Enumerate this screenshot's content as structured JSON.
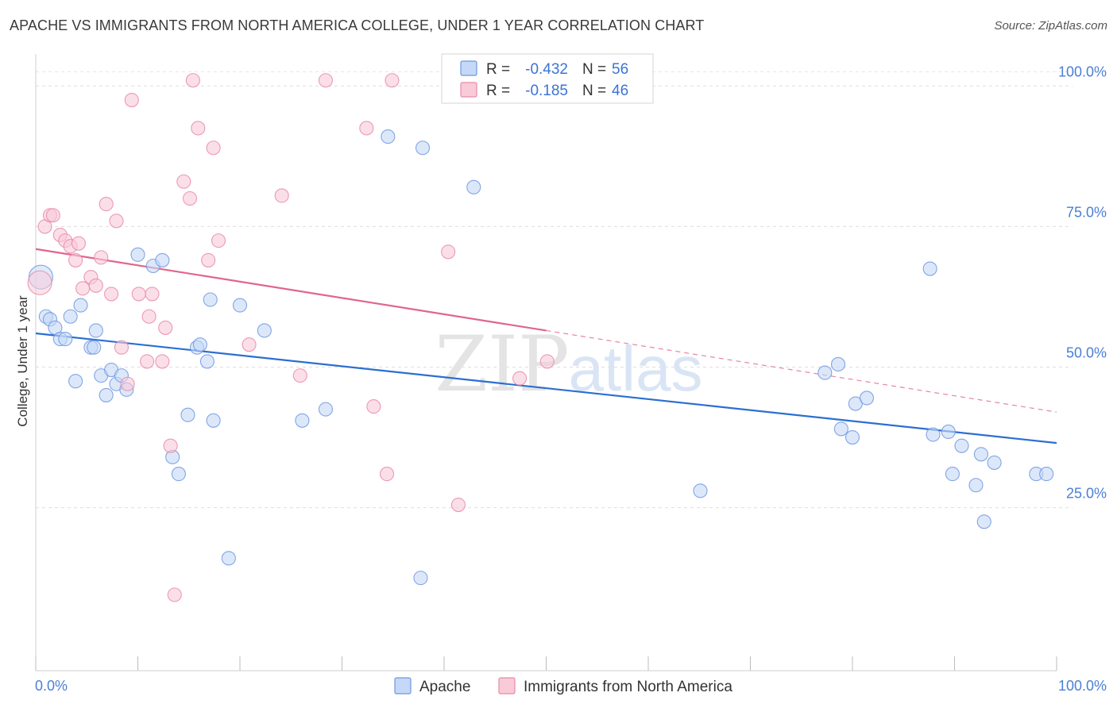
{
  "title": "APACHE VS IMMIGRANTS FROM NORTH AMERICA COLLEGE, UNDER 1 YEAR CORRELATION CHART",
  "source": "Source: ZipAtlas.com",
  "watermark": {
    "zip": "ZIP",
    "atlas": "atlas"
  },
  "legend": {
    "rows": [
      {
        "r_label": "R =",
        "r_value": "-0.432",
        "n_label": "N =",
        "n_value": "56",
        "fill": "#c5d8f7",
        "stroke": "#6e98e0"
      },
      {
        "r_label": "R =",
        "r_value": "-0.185",
        "n_label": "N =",
        "n_value": "46",
        "fill": "#f9cad8",
        "stroke": "#e98aa8"
      }
    ]
  },
  "bottom_legend": [
    {
      "label": "Apache",
      "fill": "#c5d8f7",
      "stroke": "#6e98e0"
    },
    {
      "label": "Immigrants from North America",
      "fill": "#f9cad8",
      "stroke": "#e98aa8"
    }
  ],
  "chart_data": {
    "type": "scatter",
    "ylabel": "College, Under 1 year",
    "xlim": [
      0,
      100
    ],
    "ylim": [
      0,
      100
    ],
    "x_tick_labels": [
      "0.0%",
      "100.0%"
    ],
    "y_ticks": [
      {
        "value": 25,
        "label": "25.0%"
      },
      {
        "value": 50,
        "label": "50.0%"
      },
      {
        "value": 75,
        "label": "75.0%"
      },
      {
        "value": 100,
        "label": "100.0%"
      }
    ],
    "grid": true,
    "series": [
      {
        "color": "#6e98e0",
        "fill": "#c5d8f7",
        "line_color": "#2b6fd1",
        "trend": {
          "x0": 0,
          "y0": 56,
          "x1": 100,
          "y1": 36.5
        },
        "points": [
          [
            0.5,
            66
          ],
          [
            1.0,
            59
          ],
          [
            1.4,
            58.5
          ],
          [
            1.9,
            57
          ],
          [
            2.4,
            55
          ],
          [
            2.9,
            55
          ],
          [
            3.4,
            59
          ],
          [
            3.9,
            47.5
          ],
          [
            4.4,
            61
          ],
          [
            5.4,
            53.5
          ],
          [
            5.7,
            53.5
          ],
          [
            5.9,
            56.5
          ],
          [
            6.4,
            48.5
          ],
          [
            6.9,
            45
          ],
          [
            7.4,
            49.5
          ],
          [
            7.9,
            47
          ],
          [
            8.4,
            48.5
          ],
          [
            8.9,
            46
          ],
          [
            10.0,
            70
          ],
          [
            11.5,
            68
          ],
          [
            12.4,
            69
          ],
          [
            13.4,
            34
          ],
          [
            14.0,
            31
          ],
          [
            14.9,
            41.5
          ],
          [
            15.8,
            53.5
          ],
          [
            16.1,
            54
          ],
          [
            16.8,
            51
          ],
          [
            17.1,
            62
          ],
          [
            17.4,
            40.5
          ],
          [
            18.9,
            16
          ],
          [
            20.0,
            61
          ],
          [
            22.4,
            56.5
          ],
          [
            26.1,
            40.5
          ],
          [
            28.4,
            42.5
          ],
          [
            34.5,
            91
          ],
          [
            37.7,
            12.5
          ],
          [
            37.9,
            89
          ],
          [
            42.9,
            82
          ],
          [
            65.1,
            28
          ],
          [
            77.3,
            49
          ],
          [
            78.6,
            50.5
          ],
          [
            78.9,
            39
          ],
          [
            80.0,
            37.5
          ],
          [
            80.3,
            43.5
          ],
          [
            81.4,
            44.5
          ],
          [
            87.6,
            67.5
          ],
          [
            87.9,
            38
          ],
          [
            89.4,
            38.5
          ],
          [
            89.8,
            31
          ],
          [
            90.7,
            36
          ],
          [
            92.1,
            29
          ],
          [
            92.6,
            34.5
          ],
          [
            92.9,
            22.5
          ],
          [
            93.9,
            33
          ],
          [
            98.0,
            31
          ],
          [
            99.0,
            31
          ]
        ]
      },
      {
        "color": "#e98aa8",
        "fill": "#f9cad8",
        "line_color": "#e0668c",
        "trend": {
          "x0": 0,
          "y0": 71,
          "x1": 50,
          "y1": 56.5,
          "dash_x1": 100,
          "dash_y1": 42
        },
        "points": [
          [
            0.4,
            65
          ],
          [
            0.9,
            75
          ],
          [
            1.4,
            77
          ],
          [
            1.7,
            77
          ],
          [
            2.4,
            73.5
          ],
          [
            2.9,
            72.5
          ],
          [
            3.4,
            71.5
          ],
          [
            3.9,
            69
          ],
          [
            4.2,
            72
          ],
          [
            4.6,
            64
          ],
          [
            5.4,
            66
          ],
          [
            5.9,
            64.5
          ],
          [
            6.4,
            69.5
          ],
          [
            6.9,
            79
          ],
          [
            7.4,
            63
          ],
          [
            7.9,
            76
          ],
          [
            8.4,
            53.5
          ],
          [
            9.0,
            47
          ],
          [
            9.4,
            97.5
          ],
          [
            10.1,
            63
          ],
          [
            10.9,
            51
          ],
          [
            11.1,
            59
          ],
          [
            11.4,
            63
          ],
          [
            12.4,
            51
          ],
          [
            12.7,
            57
          ],
          [
            13.2,
            36
          ],
          [
            13.6,
            9.5
          ],
          [
            14.5,
            83
          ],
          [
            15.1,
            80
          ],
          [
            15.4,
            101
          ],
          [
            15.9,
            92.5
          ],
          [
            16.9,
            69
          ],
          [
            17.4,
            89
          ],
          [
            17.9,
            72.5
          ],
          [
            20.9,
            54
          ],
          [
            24.1,
            80.5
          ],
          [
            25.9,
            48.5
          ],
          [
            28.4,
            101
          ],
          [
            32.4,
            92.5
          ],
          [
            33.1,
            43
          ],
          [
            34.4,
            31
          ],
          [
            34.9,
            101
          ],
          [
            40.4,
            70.5
          ],
          [
            41.4,
            25.5
          ],
          [
            47.4,
            48
          ],
          [
            50.1,
            51
          ]
        ]
      }
    ]
  }
}
